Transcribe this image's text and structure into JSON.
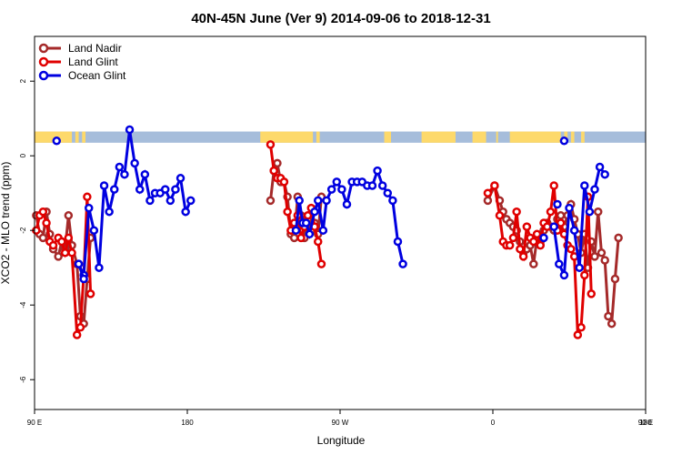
{
  "chart_data": {
    "type": "line",
    "title": "40N-45N June (Ver 9)   2014-09-06 to 2018-12-31",
    "xlabel": "Longitude",
    "ylabel": "XCO2 - MLO trend (ppm)",
    "xlim": [
      90,
      450
    ],
    "ylim": [
      -6.8,
      3.2
    ],
    "xticks": [
      {
        "value": 90,
        "label": "90 E"
      },
      {
        "value": 180,
        "label": "180"
      },
      {
        "value": 270,
        "label": "90 W"
      },
      {
        "value": 360,
        "label": "0"
      },
      {
        "value": 450,
        "label": "90 E"
      },
      {
        "value": 540,
        "label": "180"
      }
    ],
    "yticks": [
      {
        "value": 2,
        "label": "2"
      },
      {
        "value": 0,
        "label": "0"
      },
      {
        "value": -2,
        "label": "-2"
      },
      {
        "value": -4,
        "label": "-4"
      },
      {
        "value": -6,
        "label": "-6"
      }
    ],
    "grid": false,
    "legend_position": "top-left",
    "band": {
      "y_min": 0.35,
      "y_max": 0.65,
      "ocean_color": "#a6bddb",
      "land_color": "#fdd96b"
    },
    "series": [
      {
        "name": "Land Nadir",
        "color": "#a52a2a",
        "points": [
          [
            91,
            -1.6
          ],
          [
            93,
            -2.1
          ],
          [
            95,
            -2.2
          ],
          [
            97,
            -1.5
          ],
          [
            99,
            -2.1
          ],
          [
            101,
            -2.5
          ],
          [
            104,
            -2.7
          ],
          [
            106,
            -2.3
          ],
          [
            108,
            -2.5
          ],
          [
            110,
            -1.6
          ],
          [
            112,
            -2.4
          ],
          [
            115,
            -2.9
          ],
          [
            117,
            -4.3
          ],
          [
            119,
            -4.5
          ],
          [
            121,
            -3.3
          ],
          [
            123,
            -2.2
          ],
          [
            229,
            -1.2
          ],
          [
            231,
            -0.4
          ],
          [
            233,
            -0.2
          ],
          [
            235,
            -0.7
          ],
          [
            237,
            -0.7
          ],
          [
            239,
            -1.1
          ],
          [
            241,
            -2.1
          ],
          [
            243,
            -2.2
          ],
          [
            245,
            -1.1
          ],
          [
            247,
            -1.6
          ],
          [
            249,
            -2.2
          ],
          [
            251,
            -1.7
          ],
          [
            253,
            -2.0
          ],
          [
            255,
            -1.8
          ],
          [
            257,
            -2.1
          ],
          [
            259,
            -1.1
          ],
          [
            357,
            -1.2
          ],
          [
            361,
            -0.8
          ],
          [
            364,
            -1.2
          ],
          [
            366,
            -1.5
          ],
          [
            368,
            -1.7
          ],
          [
            370,
            -1.8
          ],
          [
            372,
            -1.9
          ],
          [
            374,
            -2.0
          ],
          [
            376,
            -2.3
          ],
          [
            378,
            -2.6
          ],
          [
            380,
            -2.5
          ],
          [
            382,
            -2.4
          ],
          [
            384,
            -2.9
          ],
          [
            386,
            -2.2
          ],
          [
            388,
            -2.3
          ],
          [
            390,
            -2.0
          ],
          [
            392,
            -1.8
          ],
          [
            394,
            -1.9
          ],
          [
            396,
            -2.0
          ],
          [
            398,
            -1.7
          ],
          [
            400,
            -1.6
          ],
          [
            402,
            -1.9
          ],
          [
            404,
            -1.6
          ],
          [
            406,
            -1.3
          ],
          [
            408,
            -1.7
          ],
          [
            410,
            -2.1
          ],
          [
            412,
            -2.6
          ],
          [
            414,
            -2.1
          ],
          [
            416,
            -3.0
          ],
          [
            418,
            -2.3
          ],
          [
            420,
            -2.7
          ],
          [
            422,
            -1.5
          ],
          [
            424,
            -2.6
          ],
          [
            426,
            -2.8
          ],
          [
            428,
            -4.3
          ],
          [
            430,
            -4.5
          ],
          [
            432,
            -3.3
          ],
          [
            434,
            -2.2
          ]
        ]
      },
      {
        "name": "Land Glint",
        "color": "#e00000",
        "points": [
          [
            91,
            -2.0
          ],
          [
            93,
            -1.6
          ],
          [
            95,
            -1.5
          ],
          [
            97,
            -1.8
          ],
          [
            99,
            -2.3
          ],
          [
            101,
            -2.4
          ],
          [
            104,
            -2.2
          ],
          [
            106,
            -2.3
          ],
          [
            108,
            -2.6
          ],
          [
            110,
            -2.2
          ],
          [
            112,
            -2.6
          ],
          [
            115,
            -4.8
          ],
          [
            117,
            -4.6
          ],
          [
            119,
            -3.2
          ],
          [
            121,
            -1.1
          ],
          [
            123,
            -3.7
          ],
          [
            229,
            0.3
          ],
          [
            231,
            -0.4
          ],
          [
            233,
            -0.6
          ],
          [
            235,
            -0.6
          ],
          [
            237,
            -0.7
          ],
          [
            239,
            -1.5
          ],
          [
            241,
            -2.0
          ],
          [
            243,
            -1.8
          ],
          [
            245,
            -1.6
          ],
          [
            247,
            -2.2
          ],
          [
            249,
            -1.9
          ],
          [
            251,
            -1.6
          ],
          [
            253,
            -1.4
          ],
          [
            255,
            -1.9
          ],
          [
            257,
            -2.3
          ],
          [
            259,
            -2.9
          ],
          [
            357,
            -1.0
          ],
          [
            361,
            -0.8
          ],
          [
            364,
            -1.6
          ],
          [
            366,
            -2.3
          ],
          [
            368,
            -2.4
          ],
          [
            370,
            -2.4
          ],
          [
            372,
            -2.2
          ],
          [
            374,
            -1.5
          ],
          [
            376,
            -2.5
          ],
          [
            378,
            -2.7
          ],
          [
            380,
            -1.9
          ],
          [
            382,
            -2.2
          ],
          [
            384,
            -2.3
          ],
          [
            386,
            -2.1
          ],
          [
            388,
            -2.4
          ],
          [
            390,
            -1.8
          ],
          [
            392,
            -1.9
          ],
          [
            394,
            -1.5
          ],
          [
            396,
            -0.8
          ],
          [
            398,
            -2.0
          ],
          [
            400,
            -1.8
          ],
          [
            402,
            -2.1
          ],
          [
            404,
            -2.4
          ],
          [
            406,
            -2.5
          ],
          [
            408,
            -2.7
          ],
          [
            410,
            -4.8
          ],
          [
            412,
            -4.6
          ],
          [
            414,
            -3.2
          ],
          [
            416,
            -1.1
          ],
          [
            418,
            -3.7
          ]
        ]
      },
      {
        "name": "Ocean Glint",
        "color": "#0000e0",
        "points": [
          [
            116,
            -2.9
          ],
          [
            119,
            -3.2
          ],
          [
            122,
            -1.4
          ],
          [
            125,
            -2.0
          ],
          [
            128,
            -3.0
          ],
          [
            131,
            -0.8
          ],
          [
            134,
            -1.5
          ],
          [
            137,
            -0.9
          ],
          [
            140,
            -0.3
          ],
          [
            143,
            -0.5
          ],
          [
            146,
            0.7
          ],
          [
            149,
            -0.2
          ],
          [
            152,
            -0.9
          ],
          [
            155,
            -0.5
          ],
          [
            158,
            -1.2
          ],
          [
            161,
            -1.0
          ],
          [
            164,
            -1.0
          ],
          [
            167,
            -0.9
          ],
          [
            170,
            -1.2
          ],
          [
            173,
            -0.9
          ],
          [
            176,
            -0.6
          ],
          [
            179,
            -1.5
          ],
          [
            182,
            -1.2
          ],
          [
            244,
            -2.0
          ],
          [
            246,
            -1.2
          ],
          [
            248,
            -1.8
          ],
          [
            250,
            -1.8
          ],
          [
            252,
            -2.1
          ],
          [
            255,
            -1.5
          ],
          [
            257,
            -1.2
          ],
          [
            260,
            -2.0
          ],
          [
            262,
            -1.2
          ],
          [
            265,
            -0.9
          ],
          [
            268,
            -0.7
          ],
          [
            271,
            -0.9
          ],
          [
            274,
            -1.3
          ],
          [
            277,
            -0.7
          ],
          [
            280,
            -0.7
          ],
          [
            283,
            -0.7
          ],
          [
            286,
            -0.8
          ],
          [
            289,
            -0.8
          ],
          [
            292,
            -0.4
          ],
          [
            295,
            -0.8
          ],
          [
            298,
            -1.0
          ],
          [
            301,
            -1.2
          ],
          [
            304,
            -2.3
          ],
          [
            307,
            -2.9
          ],
          [
            396,
            -1.9
          ],
          [
            399,
            -2.9
          ],
          [
            402,
            -3.2
          ],
          [
            405,
            -1.4
          ],
          [
            408,
            -2.0
          ],
          [
            411,
            -3.0
          ],
          [
            414,
            -0.8
          ],
          [
            417,
            -1.5
          ],
          [
            420,
            -0.9
          ],
          [
            423,
            -0.3
          ],
          [
            426,
            -0.5
          ]
        ]
      },
      {
        "name": "",
        "color": "#0000e0",
        "points": [
          [
            116,
            -2.9
          ],
          [
            119,
            -3.3
          ]
        ]
      }
    ],
    "isolated_points": [
      {
        "series": "Ocean Glint",
        "x": 103,
        "y": 0.4
      },
      {
        "series": "Ocean Glint",
        "x": 402,
        "y": 0.4
      },
      {
        "series": "Ocean Glint",
        "x": 398,
        "y": -1.3
      },
      {
        "series": "Ocean Glint",
        "x": 390,
        "y": -2.2
      }
    ]
  }
}
